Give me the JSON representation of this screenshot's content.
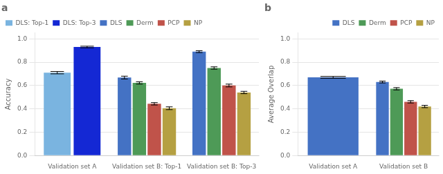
{
  "chart_data": [
    {
      "type": "bar",
      "title": "a",
      "ylabel": "Accuracy",
      "categories": [
        "Validation set A",
        "Validation set B: Top-1",
        "Validation set B: Top-3"
      ],
      "series": [
        {
          "name": "DLS: Top-1",
          "color": "#7ab4e0",
          "values": [
            0.71,
            null,
            null
          ],
          "errors": [
            0.01,
            null,
            null
          ]
        },
        {
          "name": "DLS: Top-3",
          "color": "#1428d4",
          "values": [
            0.93,
            null,
            null
          ],
          "errors": [
            0.007,
            null,
            null
          ]
        },
        {
          "name": "DLS",
          "color": "#4472c4",
          "values": [
            null,
            0.668,
            0.89
          ],
          "errors": [
            null,
            0.012,
            0.008
          ]
        },
        {
          "name": "Derm",
          "color": "#4e9a57",
          "values": [
            null,
            0.622,
            0.75
          ],
          "errors": [
            null,
            0.01,
            0.01
          ]
        },
        {
          "name": "PCP",
          "color": "#c0534a",
          "values": [
            null,
            0.443,
            0.6
          ],
          "errors": [
            null,
            0.01,
            0.012
          ]
        },
        {
          "name": "NP",
          "color": "#b5a042",
          "values": [
            null,
            0.405,
            0.54
          ],
          "errors": [
            null,
            0.012,
            0.01
          ]
        }
      ],
      "ylim": [
        0.0,
        1.05
      ],
      "yticks": [
        {
          "value": 0.0,
          "label": "0.0"
        },
        0.2,
        0.4,
        0.6,
        0.8,
        {
          "value": 1.0,
          "label": "1.0"
        }
      ],
      "grid": true,
      "legend": "upper left"
    },
    {
      "type": "bar",
      "title": "b",
      "ylabel": "Average Overlap",
      "categories": [
        "Validation set A",
        "Validation set B"
      ],
      "series": [
        {
          "name": "DLS",
          "color": "#4472c4",
          "values": [
            0.67,
            0.63
          ],
          "errors": [
            0.008,
            0.008
          ]
        },
        {
          "name": "Derm",
          "color": "#4e9a57",
          "values": [
            null,
            0.572
          ],
          "errors": [
            null,
            0.01
          ]
        },
        {
          "name": "PCP",
          "color": "#c0534a",
          "values": [
            null,
            0.46
          ],
          "errors": [
            null,
            0.01
          ]
        },
        {
          "name": "NP",
          "color": "#b5a042",
          "values": [
            null,
            0.42
          ],
          "errors": [
            null,
            0.01
          ]
        }
      ],
      "ylim": [
        0.0,
        1.05
      ],
      "yticks": [
        {
          "value": 0.0,
          "label": "0.0"
        },
        0.2,
        0.4,
        0.6,
        0.8,
        {
          "value": 1.0,
          "label": "1.0"
        }
      ],
      "grid": true,
      "legend": "upper right"
    }
  ]
}
